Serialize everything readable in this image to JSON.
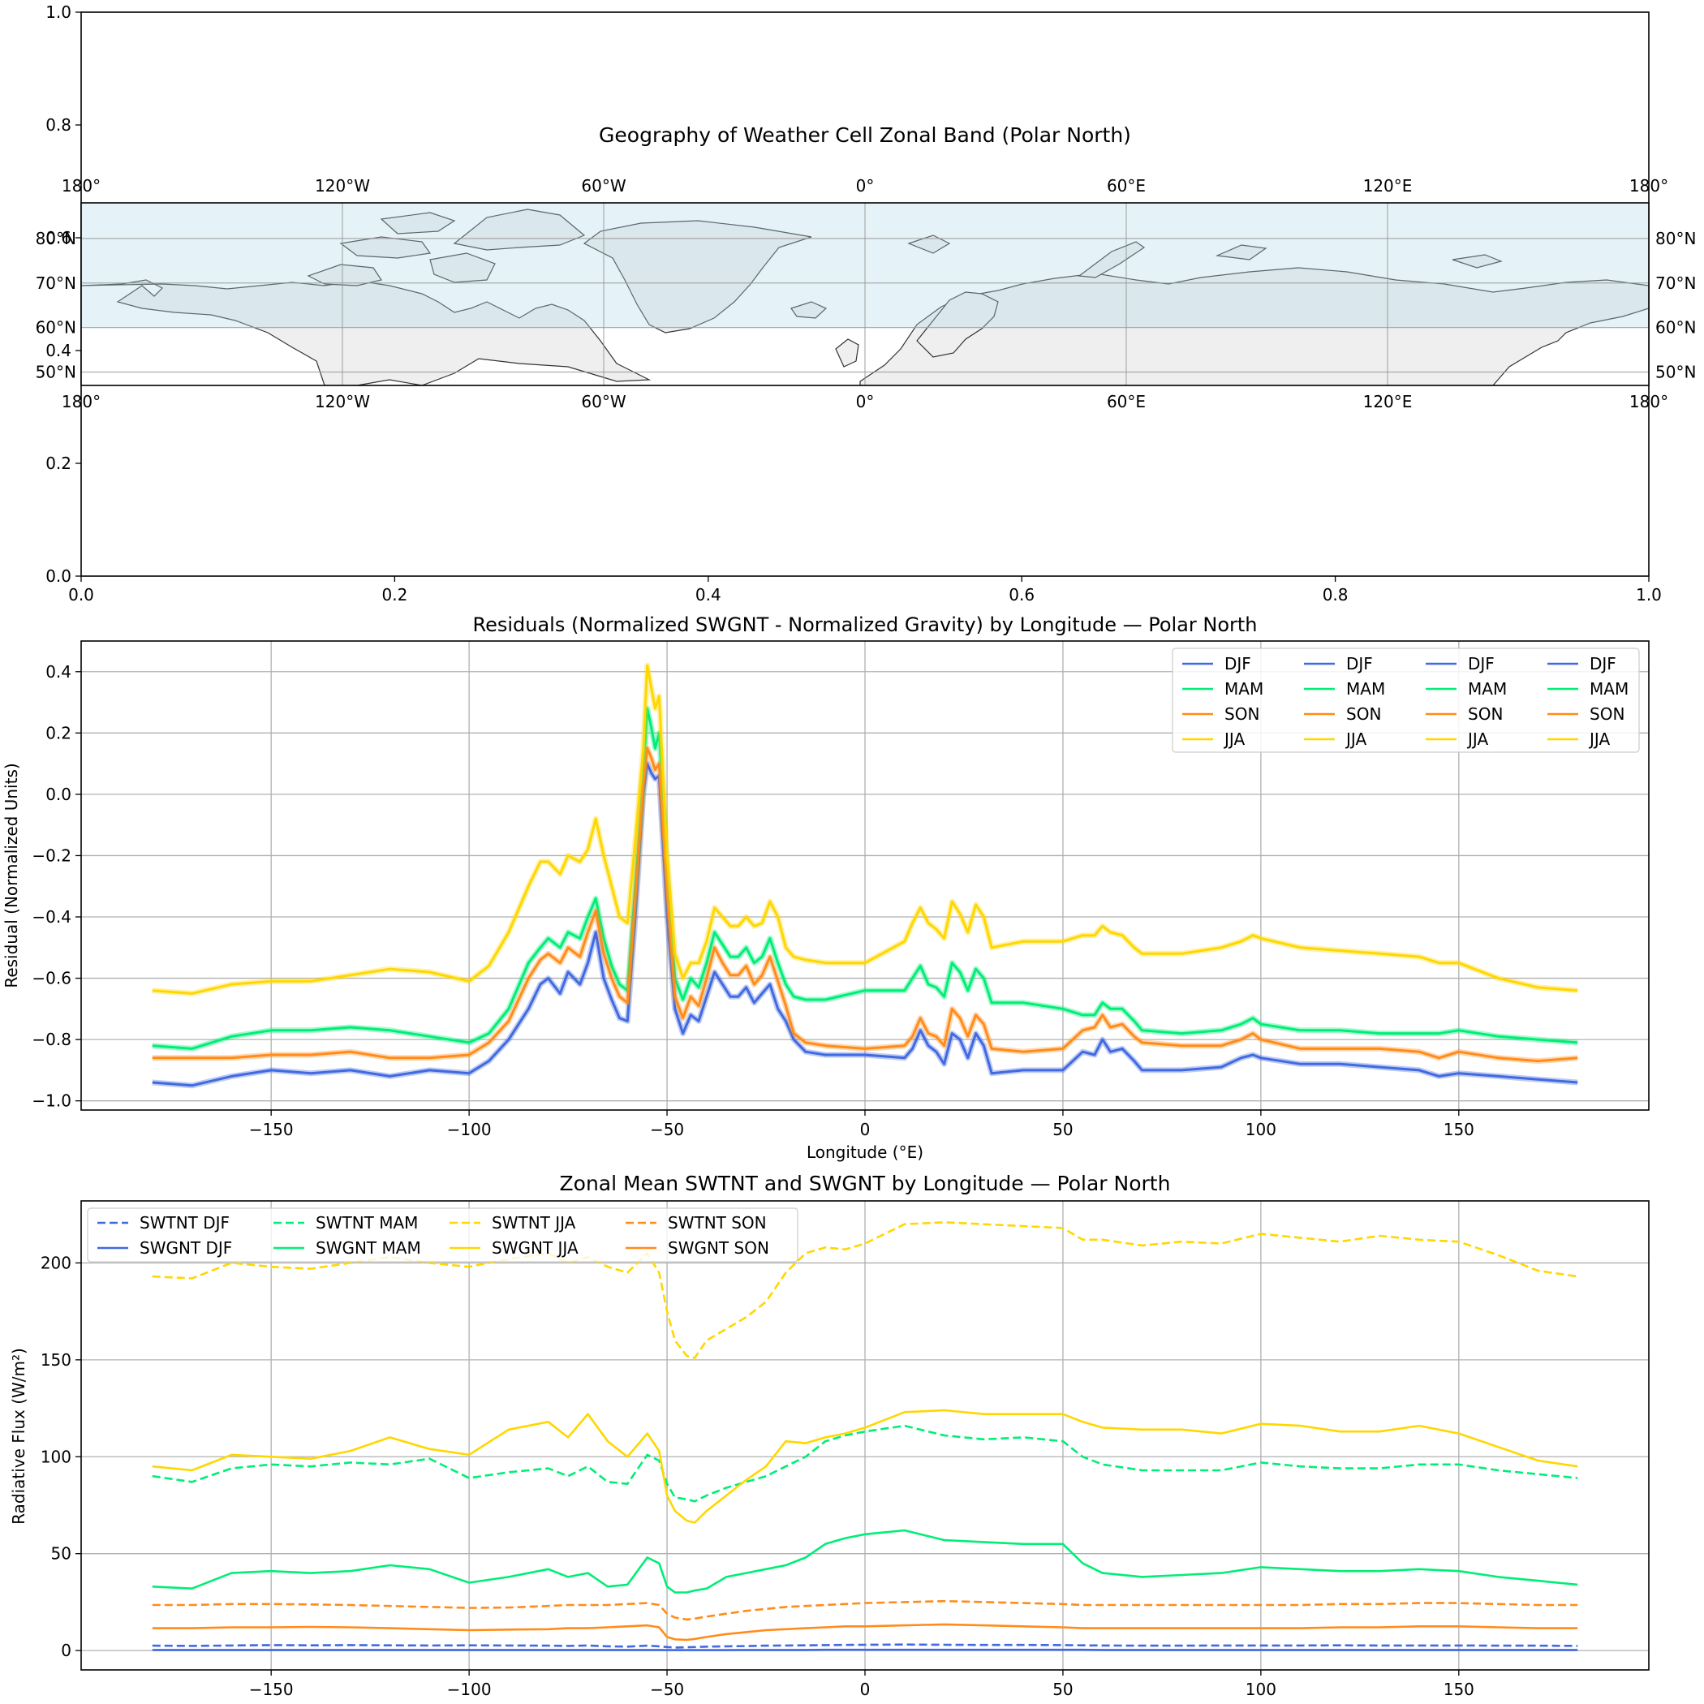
{
  "chart_data": [
    {
      "type": "map",
      "title": "Geography of Weather Cell Zonal Band (Polar North)",
      "frame_xlim": [
        0.0,
        1.0
      ],
      "frame_ylim": [
        0.0,
        1.0
      ],
      "frame_xticks": [
        "0.0",
        "0.2",
        "0.4",
        "0.6",
        "0.8",
        "1.0"
      ],
      "frame_yticks": [
        "0.0",
        "0.2",
        "0.4",
        "0.6",
        "0.8",
        "1.0"
      ],
      "lon_ticks": [
        "180°",
        "120°W",
        "60°W",
        "0°",
        "60°E",
        "120°E",
        "180°"
      ],
      "lat_ticks": [
        "80°N",
        "70°N",
        "60°N",
        "50°N"
      ],
      "band": {
        "lat_min": 60,
        "lat_max": 90,
        "color": "#add8e6"
      },
      "extent": {
        "lon": [
          -180,
          180
        ],
        "lat": [
          47,
          88
        ]
      }
    },
    {
      "type": "line",
      "title": "Residuals (Normalized SWGNT - Normalized Gravity) by Longitude — Polar North",
      "xlabel": "Longitude (°E)",
      "ylabel": "Residual (Normalized Units)",
      "xlim": [
        -198,
        198
      ],
      "ylim": [
        -1.03,
        0.5
      ],
      "xticks": [
        -150,
        -100,
        -50,
        0,
        50,
        100,
        150
      ],
      "yticks": [
        -1.0,
        -0.8,
        -0.6,
        -0.4,
        -0.2,
        0.0,
        0.2,
        0.4
      ],
      "legend": {
        "placement": "top-right",
        "columns": 4,
        "labels": [
          "DJF",
          "MAM",
          "SON",
          "JJA",
          "DJF",
          "MAM",
          "SON",
          "JJA",
          "DJF",
          "MAM",
          "SON",
          "JJA",
          "DJF",
          "MAM",
          "SON",
          "JJA"
        ]
      },
      "x": [
        -180,
        -170,
        -160,
        -150,
        -140,
        -130,
        -120,
        -110,
        -100,
        -95,
        -90,
        -85,
        -82,
        -80,
        -77,
        -75,
        -72,
        -70,
        -68,
        -66,
        -64,
        -62,
        -60,
        -58,
        -56,
        -55,
        -54,
        -53,
        -52,
        -50,
        -48,
        -46,
        -44,
        -42,
        -40,
        -38,
        -36,
        -34,
        -32,
        -30,
        -28,
        -26,
        -24,
        -22,
        -20,
        -18,
        -15,
        -10,
        0,
        10,
        12,
        14,
        16,
        18,
        20,
        22,
        24,
        26,
        28,
        30,
        32,
        40,
        50,
        55,
        58,
        60,
        62,
        65,
        68,
        70,
        80,
        90,
        95,
        98,
        100,
        110,
        120,
        130,
        140,
        145,
        150,
        160,
        170,
        180
      ],
      "series": [
        {
          "name": "DJF",
          "color": "#4169e1",
          "values": [
            -0.94,
            -0.95,
            -0.92,
            -0.9,
            -0.91,
            -0.9,
            -0.92,
            -0.9,
            -0.91,
            -0.87,
            -0.8,
            -0.7,
            -0.62,
            -0.6,
            -0.65,
            -0.58,
            -0.62,
            -0.55,
            -0.45,
            -0.6,
            -0.67,
            -0.73,
            -0.74,
            -0.4,
            0.0,
            0.1,
            0.07,
            0.05,
            0.06,
            -0.4,
            -0.7,
            -0.78,
            -0.72,
            -0.74,
            -0.66,
            -0.58,
            -0.62,
            -0.66,
            -0.66,
            -0.63,
            -0.68,
            -0.65,
            -0.62,
            -0.7,
            -0.74,
            -0.8,
            -0.84,
            -0.85,
            -0.85,
            -0.86,
            -0.83,
            -0.77,
            -0.82,
            -0.84,
            -0.88,
            -0.78,
            -0.8,
            -0.86,
            -0.78,
            -0.82,
            -0.91,
            -0.9,
            -0.9,
            -0.84,
            -0.85,
            -0.8,
            -0.84,
            -0.83,
            -0.87,
            -0.9,
            -0.9,
            -0.89,
            -0.86,
            -0.85,
            -0.86,
            -0.88,
            -0.88,
            -0.89,
            -0.9,
            -0.92,
            -0.91,
            -0.92,
            -0.93,
            -0.94
          ]
        },
        {
          "name": "MAM",
          "color": "#00ee76",
          "values": [
            -0.82,
            -0.83,
            -0.79,
            -0.77,
            -0.77,
            -0.76,
            -0.77,
            -0.79,
            -0.81,
            -0.78,
            -0.7,
            -0.55,
            -0.5,
            -0.47,
            -0.5,
            -0.45,
            -0.47,
            -0.4,
            -0.34,
            -0.47,
            -0.56,
            -0.62,
            -0.64,
            -0.3,
            0.05,
            0.28,
            0.22,
            0.15,
            0.2,
            -0.25,
            -0.6,
            -0.67,
            -0.6,
            -0.63,
            -0.55,
            -0.45,
            -0.49,
            -0.53,
            -0.53,
            -0.5,
            -0.55,
            -0.53,
            -0.47,
            -0.55,
            -0.62,
            -0.66,
            -0.67,
            -0.67,
            -0.64,
            -0.64,
            -0.6,
            -0.56,
            -0.62,
            -0.63,
            -0.66,
            -0.55,
            -0.58,
            -0.64,
            -0.57,
            -0.6,
            -0.68,
            -0.68,
            -0.7,
            -0.72,
            -0.72,
            -0.68,
            -0.7,
            -0.7,
            -0.74,
            -0.77,
            -0.78,
            -0.77,
            -0.75,
            -0.73,
            -0.75,
            -0.77,
            -0.77,
            -0.78,
            -0.78,
            -0.78,
            -0.77,
            -0.79,
            -0.8,
            -0.81
          ]
        },
        {
          "name": "SON",
          "color": "#ff8c1a",
          "values": [
            -0.86,
            -0.86,
            -0.86,
            -0.85,
            -0.85,
            -0.84,
            -0.86,
            -0.86,
            -0.85,
            -0.81,
            -0.74,
            -0.6,
            -0.54,
            -0.52,
            -0.55,
            -0.5,
            -0.53,
            -0.45,
            -0.38,
            -0.52,
            -0.6,
            -0.66,
            -0.68,
            -0.34,
            0.03,
            0.15,
            0.12,
            0.08,
            0.1,
            -0.32,
            -0.66,
            -0.73,
            -0.66,
            -0.69,
            -0.6,
            -0.5,
            -0.55,
            -0.59,
            -0.59,
            -0.56,
            -0.62,
            -0.59,
            -0.53,
            -0.61,
            -0.69,
            -0.78,
            -0.81,
            -0.82,
            -0.83,
            -0.82,
            -0.79,
            -0.73,
            -0.78,
            -0.79,
            -0.82,
            -0.7,
            -0.73,
            -0.79,
            -0.72,
            -0.75,
            -0.83,
            -0.84,
            -0.83,
            -0.77,
            -0.76,
            -0.72,
            -0.76,
            -0.75,
            -0.79,
            -0.81,
            -0.82,
            -0.82,
            -0.8,
            -0.78,
            -0.8,
            -0.83,
            -0.83,
            -0.83,
            -0.84,
            -0.86,
            -0.84,
            -0.86,
            -0.87,
            -0.86
          ]
        },
        {
          "name": "JJA",
          "color": "#ffd700",
          "values": [
            -0.64,
            -0.65,
            -0.62,
            -0.61,
            -0.61,
            -0.59,
            -0.57,
            -0.58,
            -0.61,
            -0.56,
            -0.45,
            -0.3,
            -0.22,
            -0.22,
            -0.26,
            -0.2,
            -0.22,
            -0.18,
            -0.08,
            -0.2,
            -0.3,
            -0.4,
            -0.42,
            -0.15,
            0.15,
            0.42,
            0.35,
            0.28,
            0.32,
            -0.2,
            -0.52,
            -0.6,
            -0.55,
            -0.55,
            -0.48,
            -0.37,
            -0.4,
            -0.43,
            -0.43,
            -0.4,
            -0.43,
            -0.42,
            -0.35,
            -0.4,
            -0.5,
            -0.53,
            -0.54,
            -0.55,
            -0.55,
            -0.48,
            -0.42,
            -0.37,
            -0.42,
            -0.44,
            -0.47,
            -0.35,
            -0.39,
            -0.45,
            -0.36,
            -0.4,
            -0.5,
            -0.48,
            -0.48,
            -0.46,
            -0.46,
            -0.43,
            -0.45,
            -0.46,
            -0.5,
            -0.52,
            -0.52,
            -0.5,
            -0.48,
            -0.46,
            -0.47,
            -0.5,
            -0.51,
            -0.52,
            -0.53,
            -0.55,
            -0.55,
            -0.6,
            -0.63,
            -0.64
          ]
        }
      ]
    },
    {
      "type": "line",
      "title": "Zonal Mean SWTNT and SWGNT by Longitude — Polar North",
      "xlabel": "",
      "ylabel": "Radiative Flux (W/m²)",
      "xlim": [
        -198,
        198
      ],
      "ylim": [
        -10,
        232
      ],
      "xticks": [
        -150,
        -100,
        -50,
        0,
        50,
        100,
        150
      ],
      "yticks": [
        0,
        50,
        100,
        150,
        200
      ],
      "legend": {
        "placement": "top-left",
        "columns": 4,
        "labels": [
          "SWTNT DJF",
          "SWGNT DJF",
          "SWTNT MAM",
          "SWGNT MAM",
          "SWTNT JJA",
          "SWGNT JJA",
          "SWTNT SON",
          "SWGNT SON"
        ]
      },
      "x": [
        -180,
        -170,
        -160,
        -150,
        -140,
        -130,
        -120,
        -110,
        -100,
        -90,
        -80,
        -75,
        -70,
        -65,
        -60,
        -55,
        -52,
        -50,
        -48,
        -45,
        -43,
        -40,
        -35,
        -30,
        -25,
        -20,
        -15,
        -10,
        -5,
        0,
        10,
        20,
        30,
        40,
        50,
        55,
        60,
        70,
        80,
        90,
        100,
        110,
        120,
        130,
        140,
        150,
        160,
        170,
        180
      ],
      "series": [
        {
          "name": "SWTNT DJF",
          "color": "#4169e1",
          "dash": true,
          "values": [
            2.5,
            2.4,
            2.6,
            2.8,
            2.7,
            2.8,
            2.7,
            2.6,
            2.7,
            2.6,
            2.5,
            2.4,
            2.6,
            2.2,
            2.0,
            2.5,
            2.2,
            1.8,
            1.5,
            1.7,
            1.8,
            2.0,
            2.2,
            2.3,
            2.5,
            2.6,
            2.7,
            2.8,
            2.9,
            3.0,
            3.1,
            3.0,
            2.9,
            2.9,
            2.8,
            2.7,
            2.6,
            2.5,
            2.5,
            2.6,
            2.6,
            2.6,
            2.7,
            2.6,
            2.6,
            2.6,
            2.5,
            2.5,
            2.4
          ]
        },
        {
          "name": "SWGNT DJF",
          "color": "#4169e1",
          "dash": false,
          "values": [
            0.3,
            0.3,
            0.3,
            0.3,
            0.3,
            0.3,
            0.3,
            0.3,
            0.3,
            0.3,
            0.3,
            0.3,
            0.3,
            0.3,
            0.3,
            0.3,
            0.3,
            0.2,
            0.2,
            0.2,
            0.2,
            0.2,
            0.2,
            0.3,
            0.3,
            0.3,
            0.3,
            0.4,
            0.4,
            0.4,
            0.4,
            0.4,
            0.4,
            0.4,
            0.4,
            0.4,
            0.3,
            0.3,
            0.3,
            0.3,
            0.3,
            0.3,
            0.3,
            0.3,
            0.3,
            0.3,
            0.3,
            0.3,
            0.3
          ]
        },
        {
          "name": "SWTNT MAM",
          "color": "#00ee76",
          "dash": true,
          "values": [
            90,
            87,
            94,
            96,
            95,
            97,
            96,
            99,
            89,
            92,
            94,
            90,
            95,
            87,
            86,
            101,
            98,
            86,
            79,
            78,
            77,
            80,
            84,
            87,
            90,
            95,
            100,
            108,
            111,
            113,
            116,
            111,
            109,
            110,
            108,
            100,
            96,
            93,
            93,
            93,
            97,
            95,
            94,
            94,
            96,
            96,
            93,
            91,
            89
          ]
        },
        {
          "name": "SWGNT MAM",
          "color": "#00ee76",
          "dash": false,
          "values": [
            33,
            32,
            40,
            41,
            40,
            41,
            44,
            42,
            35,
            38,
            42,
            38,
            40,
            33,
            34,
            48,
            45,
            33,
            30,
            30,
            31,
            32,
            38,
            40,
            42,
            44,
            48,
            55,
            58,
            60,
            62,
            57,
            56,
            55,
            55,
            45,
            40,
            38,
            39,
            40,
            43,
            42,
            41,
            41,
            42,
            41,
            38,
            36,
            34
          ]
        },
        {
          "name": "SWTNT JJA",
          "color": "#ffd700",
          "dash": true,
          "values": [
            193,
            192,
            200,
            198,
            197,
            200,
            203,
            200,
            198,
            202,
            205,
            200,
            203,
            198,
            195,
            205,
            195,
            175,
            160,
            152,
            151,
            160,
            166,
            172,
            180,
            195,
            205,
            208,
            207,
            210,
            220,
            221,
            220,
            219,
            218,
            212,
            212,
            209,
            211,
            210,
            215,
            213,
            211,
            214,
            212,
            211,
            204,
            196,
            193
          ]
        },
        {
          "name": "SWGNT JJA",
          "color": "#ffd700",
          "dash": false,
          "values": [
            95,
            93,
            101,
            100,
            99,
            103,
            110,
            104,
            101,
            114,
            118,
            110,
            122,
            108,
            100,
            112,
            103,
            80,
            72,
            67,
            66,
            72,
            80,
            88,
            95,
            108,
            107,
            110,
            112,
            115,
            123,
            124,
            122,
            122,
            122,
            118,
            115,
            114,
            114,
            112,
            117,
            116,
            113,
            113,
            116,
            112,
            105,
            98,
            95
          ]
        },
        {
          "name": "SWTNT SON",
          "color": "#ff8c1a",
          "dash": true,
          "values": [
            23.5,
            23.5,
            24,
            24,
            23.8,
            23.5,
            23,
            22.5,
            22,
            22.2,
            23,
            23.5,
            23.5,
            23.5,
            24,
            24.5,
            23.5,
            19,
            17,
            16,
            16.5,
            17.5,
            19,
            20.5,
            21.5,
            22.5,
            23,
            23.5,
            24,
            24.5,
            25,
            25.5,
            25,
            24.5,
            24,
            23.5,
            23.5,
            23.5,
            23.5,
            23.5,
            23.5,
            23.5,
            24,
            24,
            24.5,
            24.5,
            24,
            23.5,
            23.5
          ]
        },
        {
          "name": "SWGNT SON",
          "color": "#ff8c1a",
          "dash": false,
          "values": [
            11.5,
            11.5,
            12,
            12,
            12.2,
            12,
            11.5,
            11,
            10.5,
            10.8,
            11,
            11.5,
            11.5,
            12,
            12.5,
            13,
            12,
            7,
            5.8,
            5.5,
            6,
            7,
            8.5,
            9.5,
            10.5,
            11,
            11.5,
            12,
            12.5,
            12.5,
            13,
            13.5,
            13,
            12.5,
            12,
            11.5,
            11.5,
            11.5,
            11.5,
            11.5,
            11.5,
            11.5,
            12,
            12,
            12.5,
            12.5,
            12,
            11.5,
            11.5
          ]
        }
      ]
    }
  ]
}
